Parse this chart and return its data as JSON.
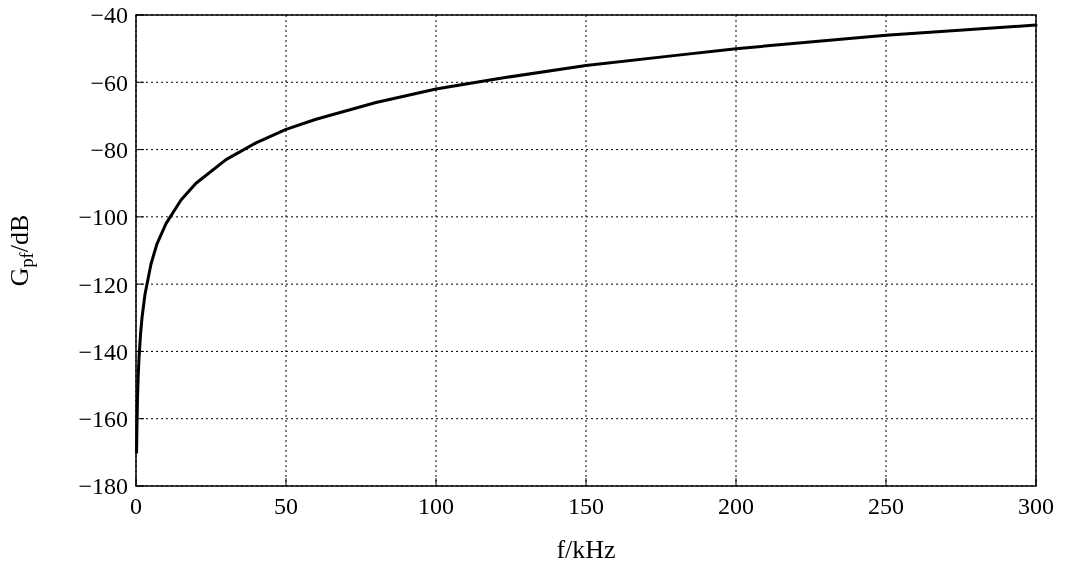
{
  "chart_data": {
    "type": "line",
    "xlabel": "f/kHz",
    "ylabel": "G$_{pf}$/dB",
    "x": [
      0.2,
      0.3,
      0.5,
      0.7,
      1,
      1.5,
      2,
      3,
      5,
      7,
      10,
      15,
      20,
      30,
      40,
      50,
      60,
      80,
      100,
      120,
      150,
      180,
      200,
      250,
      300
    ],
    "series": [
      {
        "color": "#000000",
        "values": [
          -170,
          -163,
          -154,
          -148,
          -142,
          -135,
          -130,
          -123,
          -114,
          -108,
          -102,
          -95,
          -90,
          -83,
          -78,
          -74,
          -71,
          -66,
          -62,
          -59,
          -55,
          -52,
          -50,
          -46,
          -43
        ]
      }
    ],
    "xlim": [
      0,
      300
    ],
    "xticks": [
      0,
      50,
      100,
      150,
      200,
      250,
      300
    ],
    "ylim": [
      -180,
      -40
    ],
    "yticks": [
      -180,
      -160,
      -140,
      -120,
      -100,
      -80,
      -60,
      -40
    ],
    "grid": true,
    "line_style": "solid",
    "marker": "none"
  }
}
